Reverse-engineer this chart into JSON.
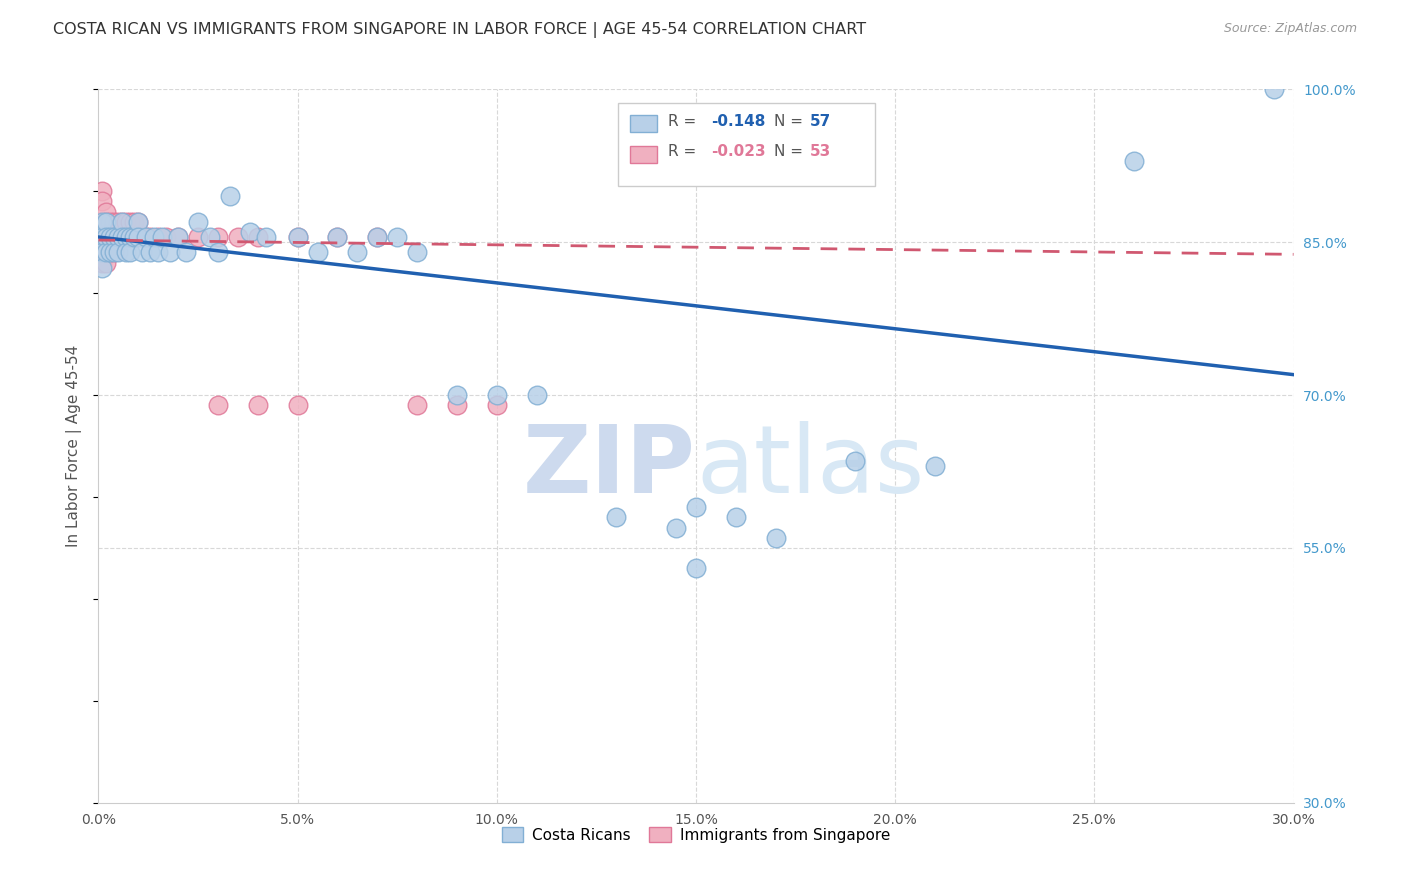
{
  "title": "COSTA RICAN VS IMMIGRANTS FROM SINGAPORE IN LABOR FORCE | AGE 45-54 CORRELATION CHART",
  "source_text": "Source: ZipAtlas.com",
  "ylabel": "In Labor Force | Age 45-54",
  "xlim": [
    0.0,
    0.3
  ],
  "ylim": [
    0.3,
    1.0
  ],
  "blue_R": -0.148,
  "blue_N": 57,
  "pink_R": -0.023,
  "pink_N": 53,
  "blue_color": "#b8d0e8",
  "blue_edge": "#82afd4",
  "pink_color": "#f0b0c0",
  "pink_edge": "#e07898",
  "blue_line_color": "#2060b0",
  "pink_line_color": "#d05870",
  "watermark_color": "#d5e5f5",
  "background_color": "#ffffff",
  "grid_color": "#d8d8d8",
  "title_color": "#333333",
  "axis_label_color": "#555555",
  "right_axis_color": "#4499cc",
  "blue_trend_x0": 0.0,
  "blue_trend_y0": 0.855,
  "blue_trend_x1": 0.3,
  "blue_trend_y1": 0.72,
  "pink_trend_x0": 0.0,
  "pink_trend_y0": 0.852,
  "pink_trend_x1": 0.3,
  "pink_trend_y1": 0.838,
  "blue_x": [
    0.001,
    0.001,
    0.001,
    0.001,
    0.002,
    0.002,
    0.002,
    0.003,
    0.003,
    0.004,
    0.004,
    0.005,
    0.005,
    0.006,
    0.006,
    0.007,
    0.007,
    0.008,
    0.008,
    0.009,
    0.01,
    0.01,
    0.011,
    0.012,
    0.013,
    0.014,
    0.015,
    0.016,
    0.018,
    0.02,
    0.022,
    0.025,
    0.028,
    0.03,
    0.033,
    0.038,
    0.042,
    0.05,
    0.055,
    0.06,
    0.065,
    0.07,
    0.075,
    0.08,
    0.09,
    0.1,
    0.11,
    0.13,
    0.145,
    0.16,
    0.17,
    0.19,
    0.21,
    0.26,
    0.295,
    0.15,
    0.15
  ],
  "blue_y": [
    0.87,
    0.855,
    0.84,
    0.825,
    0.87,
    0.855,
    0.84,
    0.855,
    0.84,
    0.855,
    0.84,
    0.855,
    0.84,
    0.87,
    0.855,
    0.855,
    0.84,
    0.855,
    0.84,
    0.855,
    0.87,
    0.855,
    0.84,
    0.855,
    0.84,
    0.855,
    0.84,
    0.855,
    0.84,
    0.855,
    0.84,
    0.87,
    0.855,
    0.84,
    0.895,
    0.86,
    0.855,
    0.855,
    0.84,
    0.855,
    0.84,
    0.855,
    0.855,
    0.84,
    0.7,
    0.7,
    0.7,
    0.58,
    0.57,
    0.58,
    0.56,
    0.635,
    0.63,
    0.93,
    1.0,
    0.59,
    0.53
  ],
  "pink_x": [
    0.0,
    0.0,
    0.001,
    0.001,
    0.001,
    0.001,
    0.001,
    0.001,
    0.001,
    0.002,
    0.002,
    0.002,
    0.002,
    0.002,
    0.003,
    0.003,
    0.003,
    0.003,
    0.004,
    0.004,
    0.004,
    0.004,
    0.005,
    0.005,
    0.005,
    0.006,
    0.006,
    0.007,
    0.007,
    0.008,
    0.008,
    0.009,
    0.009,
    0.01,
    0.011,
    0.012,
    0.013,
    0.015,
    0.017,
    0.02,
    0.025,
    0.03,
    0.035,
    0.04,
    0.05,
    0.06,
    0.07,
    0.08,
    0.09,
    0.1,
    0.03,
    0.04,
    0.05
  ],
  "pink_y": [
    0.87,
    0.855,
    0.9,
    0.89,
    0.87,
    0.86,
    0.85,
    0.84,
    0.83,
    0.88,
    0.87,
    0.855,
    0.84,
    0.83,
    0.87,
    0.86,
    0.85,
    0.84,
    0.87,
    0.86,
    0.85,
    0.84,
    0.87,
    0.86,
    0.85,
    0.87,
    0.855,
    0.87,
    0.855,
    0.87,
    0.855,
    0.87,
    0.855,
    0.87,
    0.855,
    0.855,
    0.855,
    0.855,
    0.855,
    0.855,
    0.855,
    0.855,
    0.855,
    0.855,
    0.855,
    0.855,
    0.855,
    0.69,
    0.69,
    0.69,
    0.69,
    0.69,
    0.69
  ]
}
